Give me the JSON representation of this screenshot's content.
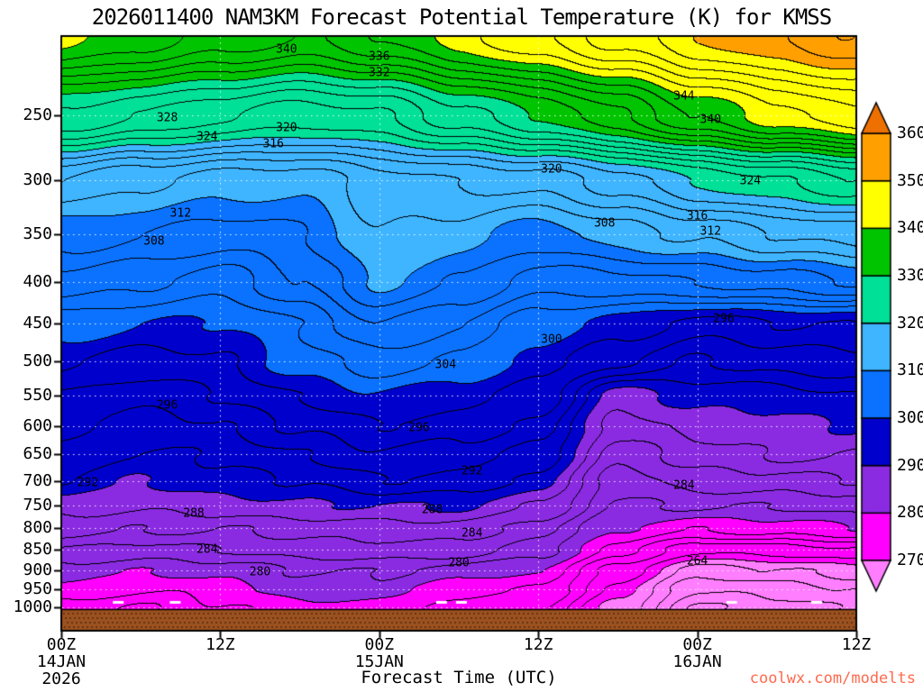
{
  "title": "2026011400 NAM3KM Forecast Potential Temperature (K) for KMSS",
  "xlabel": "Forecast Time (UTC)",
  "watermark": "coolwx.com/modelts",
  "watermark_color": "#FF6A4D",
  "axes": {
    "y_ticks": [
      250,
      300,
      350,
      400,
      450,
      500,
      550,
      600,
      650,
      700,
      750,
      800,
      850,
      900,
      950,
      1000
    ],
    "x_ticks": [
      {
        "hour": 0,
        "label": "00Z",
        "sub": [
          "14JAN",
          "2026"
        ]
      },
      {
        "hour": 12,
        "label": "12Z",
        "sub": []
      },
      {
        "hour": 24,
        "label": "00Z",
        "sub": [
          "15JAN"
        ]
      },
      {
        "hour": 36,
        "label": "12Z",
        "sub": []
      },
      {
        "hour": 48,
        "label": "00Z",
        "sub": [
          "16JAN"
        ]
      },
      {
        "hour": 60,
        "label": "12Z",
        "sub": []
      }
    ]
  },
  "colorbar": {
    "levels": [
      270,
      280,
      290,
      300,
      310,
      320,
      330,
      340,
      350,
      360
    ],
    "band_colors": [
      "#FF00FF",
      "#8A2BE2",
      "#0000CD",
      "#0A72FF",
      "#3FB5FF",
      "#00E096",
      "#00C400",
      "#FFFF00",
      "#FFA000"
    ],
    "below_color": "#FF7DFF",
    "above_color": "#ED7000"
  },
  "chart_data": {
    "type": "filled_contour",
    "units": "K",
    "x_hours": [
      0,
      6,
      12,
      18,
      24,
      30,
      36,
      42,
      48,
      54,
      60
    ],
    "pressure_levels": [
      200,
      250,
      300,
      350,
      400,
      450,
      500,
      550,
      600,
      650,
      700,
      750,
      800,
      850,
      900,
      950,
      1000
    ],
    "theta_K": [
      [
        341,
        339,
        337,
        336,
        338,
        341,
        344,
        347,
        350,
        352,
        354
      ],
      [
        328,
        326,
        324,
        323,
        324,
        327,
        330,
        334,
        338,
        341,
        344
      ],
      [
        314,
        312,
        311,
        311,
        313,
        314,
        315,
        317,
        320,
        322,
        324
      ],
      [
        309,
        308,
        307,
        308,
        312,
        311,
        309,
        311,
        312,
        314,
        315
      ],
      [
        305,
        304,
        303,
        306,
        310,
        308,
        305,
        305,
        306,
        307,
        308
      ],
      [
        301,
        300,
        300,
        302,
        306,
        304,
        301,
        299,
        297,
        298,
        298
      ],
      [
        298,
        297,
        298,
        301,
        303,
        302,
        299,
        296,
        294,
        295,
        295
      ],
      [
        296,
        295,
        296,
        298,
        300,
        299,
        297,
        289,
        291,
        291,
        292
      ],
      [
        295,
        293,
        294,
        296,
        298,
        297,
        295,
        287,
        289,
        289,
        290
      ],
      [
        293,
        292,
        292,
        294,
        296,
        295,
        293,
        285,
        287,
        288,
        288
      ],
      [
        292,
        290,
        291,
        292,
        294,
        293,
        291,
        283,
        285,
        285,
        286
      ],
      [
        289,
        288,
        289,
        290,
        290,
        290,
        288,
        282,
        282,
        282,
        283
      ],
      [
        287,
        286,
        286,
        287,
        287,
        287,
        285,
        280,
        278,
        279,
        280
      ],
      [
        284,
        283,
        284,
        285,
        285,
        285,
        283,
        277,
        272,
        273,
        274
      ],
      [
        281,
        280,
        281,
        282,
        282,
        281,
        280,
        273,
        267,
        268,
        269
      ],
      [
        279,
        278,
        279,
        281,
        281,
        279,
        278,
        271,
        264,
        265,
        266
      ],
      [
        277,
        276,
        278,
        279,
        279,
        277,
        276,
        269,
        262,
        263,
        264
      ]
    ],
    "contour_interval_K": 2,
    "fill_interval_K": 10,
    "ylim_hPa": [
      200,
      1005
    ],
    "xlim_hours": [
      0,
      60
    ],
    "surface_color": "#9C5220",
    "contour_labels": [
      {
        "v": 340,
        "t": 17,
        "p": 208
      },
      {
        "v": 336,
        "t": 24,
        "p": 212
      },
      {
        "v": 332,
        "t": 24,
        "p": 222
      },
      {
        "v": 328,
        "t": 8,
        "p": 252
      },
      {
        "v": 324,
        "t": 11,
        "p": 266
      },
      {
        "v": 320,
        "t": 17,
        "p": 259
      },
      {
        "v": 316,
        "t": 16,
        "p": 271
      },
      {
        "v": 312,
        "t": 9,
        "p": 330
      },
      {
        "v": 308,
        "t": 7,
        "p": 357
      },
      {
        "v": 344,
        "t": 47,
        "p": 237
      },
      {
        "v": 340,
        "t": 49,
        "p": 253
      },
      {
        "v": 320,
        "t": 37,
        "p": 291
      },
      {
        "v": 324,
        "t": 52,
        "p": 301
      },
      {
        "v": 316,
        "t": 48,
        "p": 332
      },
      {
        "v": 312,
        "t": 49,
        "p": 347
      },
      {
        "v": 308,
        "t": 41,
        "p": 339
      },
      {
        "v": 296,
        "t": 8,
        "p": 566
      },
      {
        "v": 296,
        "t": 27,
        "p": 604
      },
      {
        "v": 300,
        "t": 37,
        "p": 470
      },
      {
        "v": 304,
        "t": 29,
        "p": 505
      },
      {
        "v": 296,
        "t": 50,
        "p": 444
      },
      {
        "v": 292,
        "t": 2,
        "p": 704
      },
      {
        "v": 292,
        "t": 31,
        "p": 681
      },
      {
        "v": 288,
        "t": 10,
        "p": 768
      },
      {
        "v": 288,
        "t": 28,
        "p": 760
      },
      {
        "v": 284,
        "t": 11,
        "p": 849
      },
      {
        "v": 284,
        "t": 31,
        "p": 812
      },
      {
        "v": 284,
        "t": 47,
        "p": 710
      },
      {
        "v": 280,
        "t": 15,
        "p": 905
      },
      {
        "v": 280,
        "t": 30,
        "p": 882
      },
      {
        "v": 264,
        "t": 48,
        "p": 878
      }
    ],
    "surface_marks_hours": [
      4.3,
      8.6,
      28.7,
      30.2,
      50.6,
      57.0
    ]
  }
}
